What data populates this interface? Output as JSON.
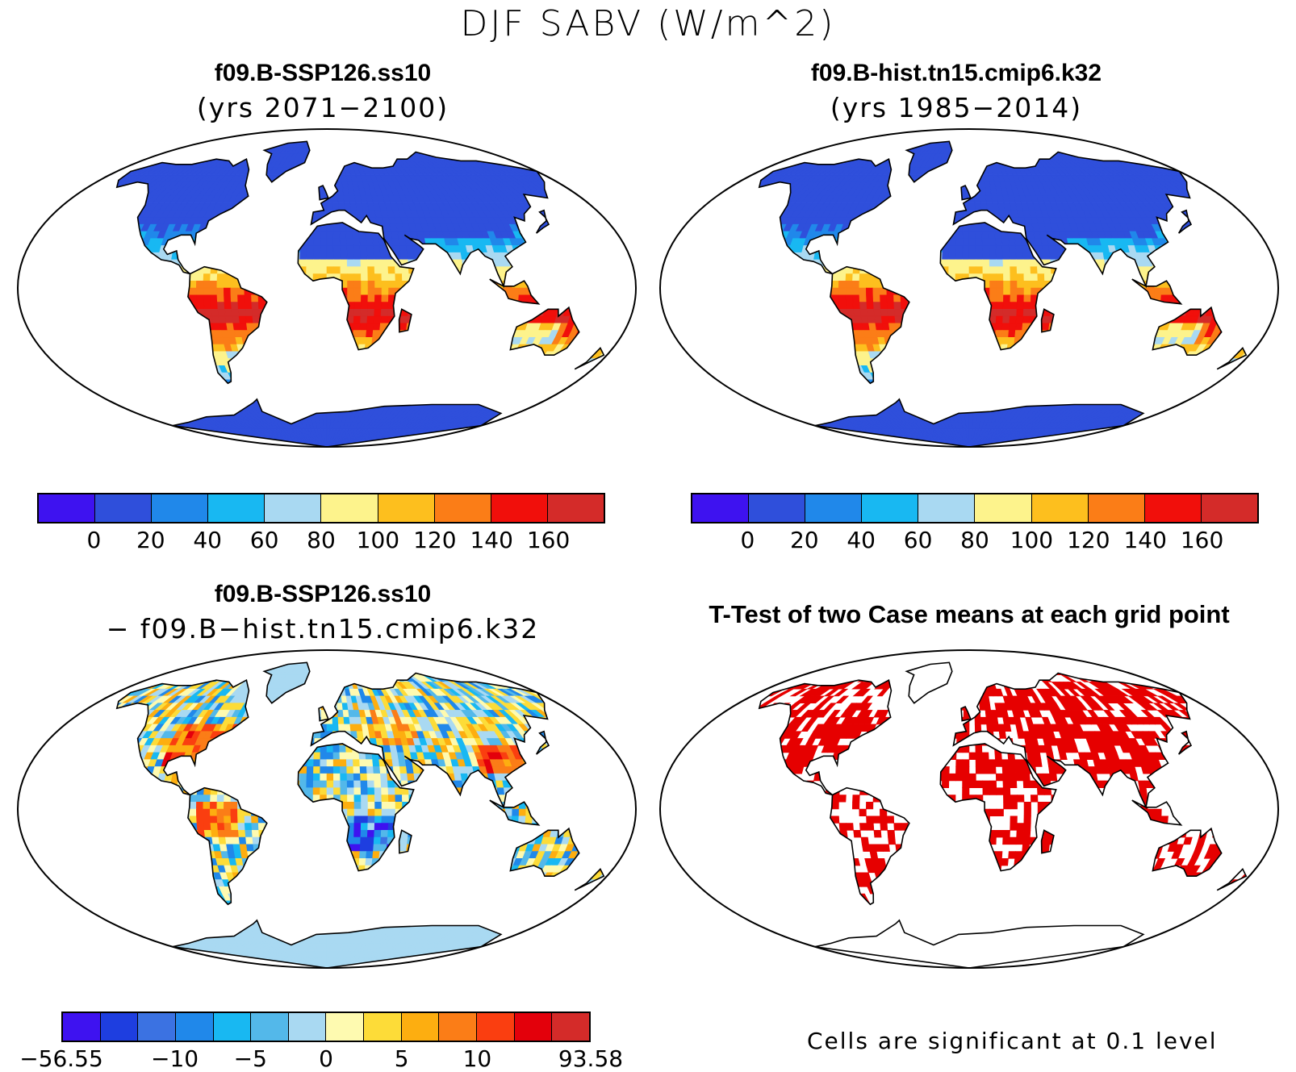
{
  "title": "DJF SABV (W/m^2)",
  "panels": [
    {
      "id": "ssp",
      "title": "f09.B-SSP126.ss10",
      "subtitle": "(yrs 2071−2100)",
      "field": "absolute"
    },
    {
      "id": "hist",
      "title": "f09.B-hist.tn15.cmip6.k32",
      "subtitle": "(yrs 1985−2014)",
      "field": "absolute"
    },
    {
      "id": "diff",
      "title": "f09.B-SSP126.ss10",
      "subtitle": "− f09.B−hist.tn15.cmip6.k32",
      "field": "difference"
    },
    {
      "id": "ttest",
      "title": "T-Test of two Case means at each grid point",
      "field": "significance"
    }
  ],
  "colorbar_absolute": {
    "colors": [
      "#3e12f0",
      "#2f4fdb",
      "#2088ea",
      "#18b8f2",
      "#a9d9f2",
      "#fdf38c",
      "#fdbf1e",
      "#fb7d17",
      "#f10f0b",
      "#d42b29"
    ],
    "tick_labels": [
      "0",
      "20",
      "40",
      "60",
      "80",
      "100",
      "120",
      "140",
      "160"
    ]
  },
  "colorbar_difference": {
    "colors": [
      "#3e12f0",
      "#1e3ee0",
      "#3b72e2",
      "#2088ea",
      "#18b8f2",
      "#53b8ea",
      "#a9d9f2",
      "#fefab0",
      "#fddc38",
      "#fdae10",
      "#fb7d17",
      "#fa3e10",
      "#e3000b",
      "#d42b29"
    ],
    "tick_labels": [
      "−56.55",
      "−10",
      "−5",
      "0",
      "5",
      "10",
      "93.58"
    ]
  },
  "significance_color": "#e60000",
  "significance_note": "Cells are significant at 0.1 level"
}
